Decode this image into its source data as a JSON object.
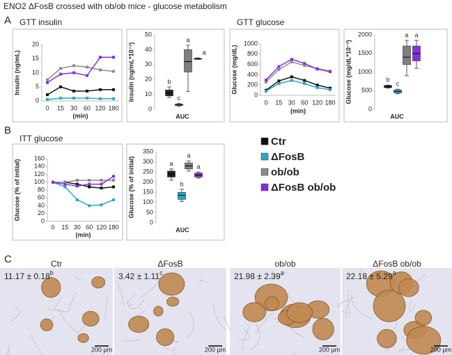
{
  "title": "ENO2 ΔFosB crossed with ob/ob mice - glucose metabolism",
  "panel_labels": [
    "A",
    "B",
    "C"
  ],
  "chart_data": [
    {
      "type": "line",
      "title": "GTT insulin",
      "y_label": "Insulin (ng/mL)",
      "x_label": "(min)",
      "categories": [
        "0",
        "15",
        "30",
        "60",
        "120",
        "180"
      ],
      "ylim": [
        0,
        20
      ],
      "yticks": [
        0,
        5,
        10,
        15,
        20
      ],
      "series": [
        {
          "name": "Ctr",
          "color": "#111111",
          "values": [
            2.2,
            5.0,
            3.5,
            3.5,
            4.0,
            4.0
          ]
        },
        {
          "name": "ΔFosB",
          "color": "#2aa7c9",
          "values": [
            0.5,
            1.0,
            1.0,
            1.0,
            0.8,
            0.8
          ]
        },
        {
          "name": "ob/ob",
          "color": "#8a8a8a",
          "values": [
            7.5,
            11.5,
            12.5,
            12.0,
            11.0,
            10.5
          ]
        },
        {
          "name": "ΔFosB ob/ob",
          "color": "#8a2be2",
          "values": [
            6.5,
            9.5,
            10.0,
            9.0,
            15.5,
            15.5
          ]
        }
      ]
    },
    {
      "type": "box",
      "y_label": "Insulin (ng/mL*10⁻³)",
      "x_label": "AUC",
      "ylim": [
        0,
        50
      ],
      "yticks": [
        0,
        10,
        20,
        30,
        40,
        50
      ],
      "boxes": [
        {
          "color": "#222222",
          "min": 8,
          "q1": 9,
          "median": 11,
          "q3": 13,
          "max": 15,
          "letter": "b"
        },
        {
          "color": "#2aa7c9",
          "min": 2,
          "q1": 2.5,
          "median": 3,
          "q3": 3.5,
          "max": 4,
          "letter": "c"
        },
        {
          "color": "#7f7f7f",
          "min": 12,
          "q1": 25,
          "median": 32,
          "q3": 40,
          "max": 43,
          "letter": "a"
        },
        {
          "color": "#8a2be2",
          "min": 33.5,
          "q1": 33.7,
          "median": 34,
          "q3": 34.2,
          "max": 34.5,
          "letter": "a"
        }
      ]
    },
    {
      "type": "line",
      "title": "GTT glucose",
      "y_label": "Glucose (mg/dL)",
      "x_label": "(min)",
      "categories": [
        "0",
        "15",
        "30",
        "60",
        "120",
        "180"
      ],
      "ylim": [
        0,
        1000
      ],
      "yticks": [
        0,
        200,
        400,
        600,
        800,
        1000
      ],
      "series": [
        {
          "color": "#111111",
          "values": [
            100,
            280,
            360,
            290,
            200,
            140
          ]
        },
        {
          "color": "#2aa7c9",
          "values": [
            80,
            230,
            290,
            230,
            150,
            110
          ]
        },
        {
          "color": "#8a8a8a",
          "values": [
            260,
            500,
            650,
            580,
            520,
            470
          ]
        },
        {
          "color": "#8a2be2",
          "values": [
            300,
            560,
            700,
            620,
            510,
            460
          ]
        }
      ]
    },
    {
      "type": "box",
      "y_label": "Glucose (mg/dL*10⁻³)",
      "x_label": "AUC",
      "ylim": [
        0,
        2000
      ],
      "yticks": [
        0,
        500,
        1000,
        1500,
        2000
      ],
      "boxes": [
        {
          "color": "#222222",
          "min": 570,
          "q1": 580,
          "median": 610,
          "q3": 640,
          "max": 650,
          "letter": "b"
        },
        {
          "color": "#2aa7c9",
          "min": 420,
          "q1": 440,
          "median": 480,
          "q3": 520,
          "max": 540,
          "letter": "c"
        },
        {
          "color": "#7f7f7f",
          "min": 900,
          "q1": 1200,
          "median": 1400,
          "q3": 1700,
          "max": 1850,
          "letter": "a"
        },
        {
          "color": "#8a2be2",
          "min": 1100,
          "q1": 1300,
          "median": 1500,
          "q3": 1700,
          "max": 1850,
          "letter": "a"
        }
      ]
    },
    {
      "type": "line",
      "title": "ITT glucose",
      "y_label": "Glucose (% of initial)",
      "x_label": "(min)",
      "categories": [
        "0",
        "15",
        "30",
        "60",
        "120",
        "180"
      ],
      "ylim": [
        0,
        160
      ],
      "yticks": [
        0,
        20,
        40,
        60,
        80,
        100,
        120,
        140,
        160
      ],
      "series": [
        {
          "color": "#111111",
          "values": [
            100,
            100,
            95,
            88,
            85,
            88
          ]
        },
        {
          "color": "#2aa7c9",
          "values": [
            100,
            88,
            55,
            40,
            42,
            55
          ]
        },
        {
          "color": "#8a8a8a",
          "values": [
            100,
            100,
            105,
            105,
            105,
            105
          ]
        },
        {
          "color": "#8a2be2",
          "values": [
            100,
            95,
            90,
            95,
            95,
            115
          ]
        }
      ]
    },
    {
      "type": "box",
      "y_label": "Glucose (% of initial)",
      "x_label": "AUC",
      "ylim": [
        0,
        350
      ],
      "yticks": [
        0,
        50,
        100,
        150,
        200,
        250,
        300,
        350
      ],
      "boxes": [
        {
          "color": "#222222",
          "min": 210,
          "q1": 225,
          "median": 240,
          "q3": 255,
          "max": 265,
          "letter": "a"
        },
        {
          "color": "#2aa7c9",
          "min": 105,
          "q1": 115,
          "median": 135,
          "q3": 150,
          "max": 165,
          "letter": "b"
        },
        {
          "color": "#7f7f7f",
          "min": 255,
          "q1": 265,
          "median": 280,
          "q3": 295,
          "max": 305,
          "letter": "a"
        },
        {
          "color": "#8a2be2",
          "min": 220,
          "q1": 225,
          "median": 235,
          "q3": 245,
          "max": 250,
          "letter": "a"
        }
      ]
    }
  ],
  "histology": [
    {
      "label": "Ctr",
      "value": "11.17 ± 0.18",
      "letter": "b",
      "scale": "200 µm"
    },
    {
      "label": "ΔFosB",
      "value": "3.42 ± 1.11",
      "letter": "c",
      "scale": "200 µm"
    },
    {
      "label": "ob/ob",
      "value": "21.98 ± 2.39",
      "letter": "a",
      "scale": "200 µm"
    },
    {
      "label": "ΔFosB ob/ob",
      "value": "22.18 ± 5.29",
      "letter": "a",
      "scale": "200 µm"
    }
  ]
}
